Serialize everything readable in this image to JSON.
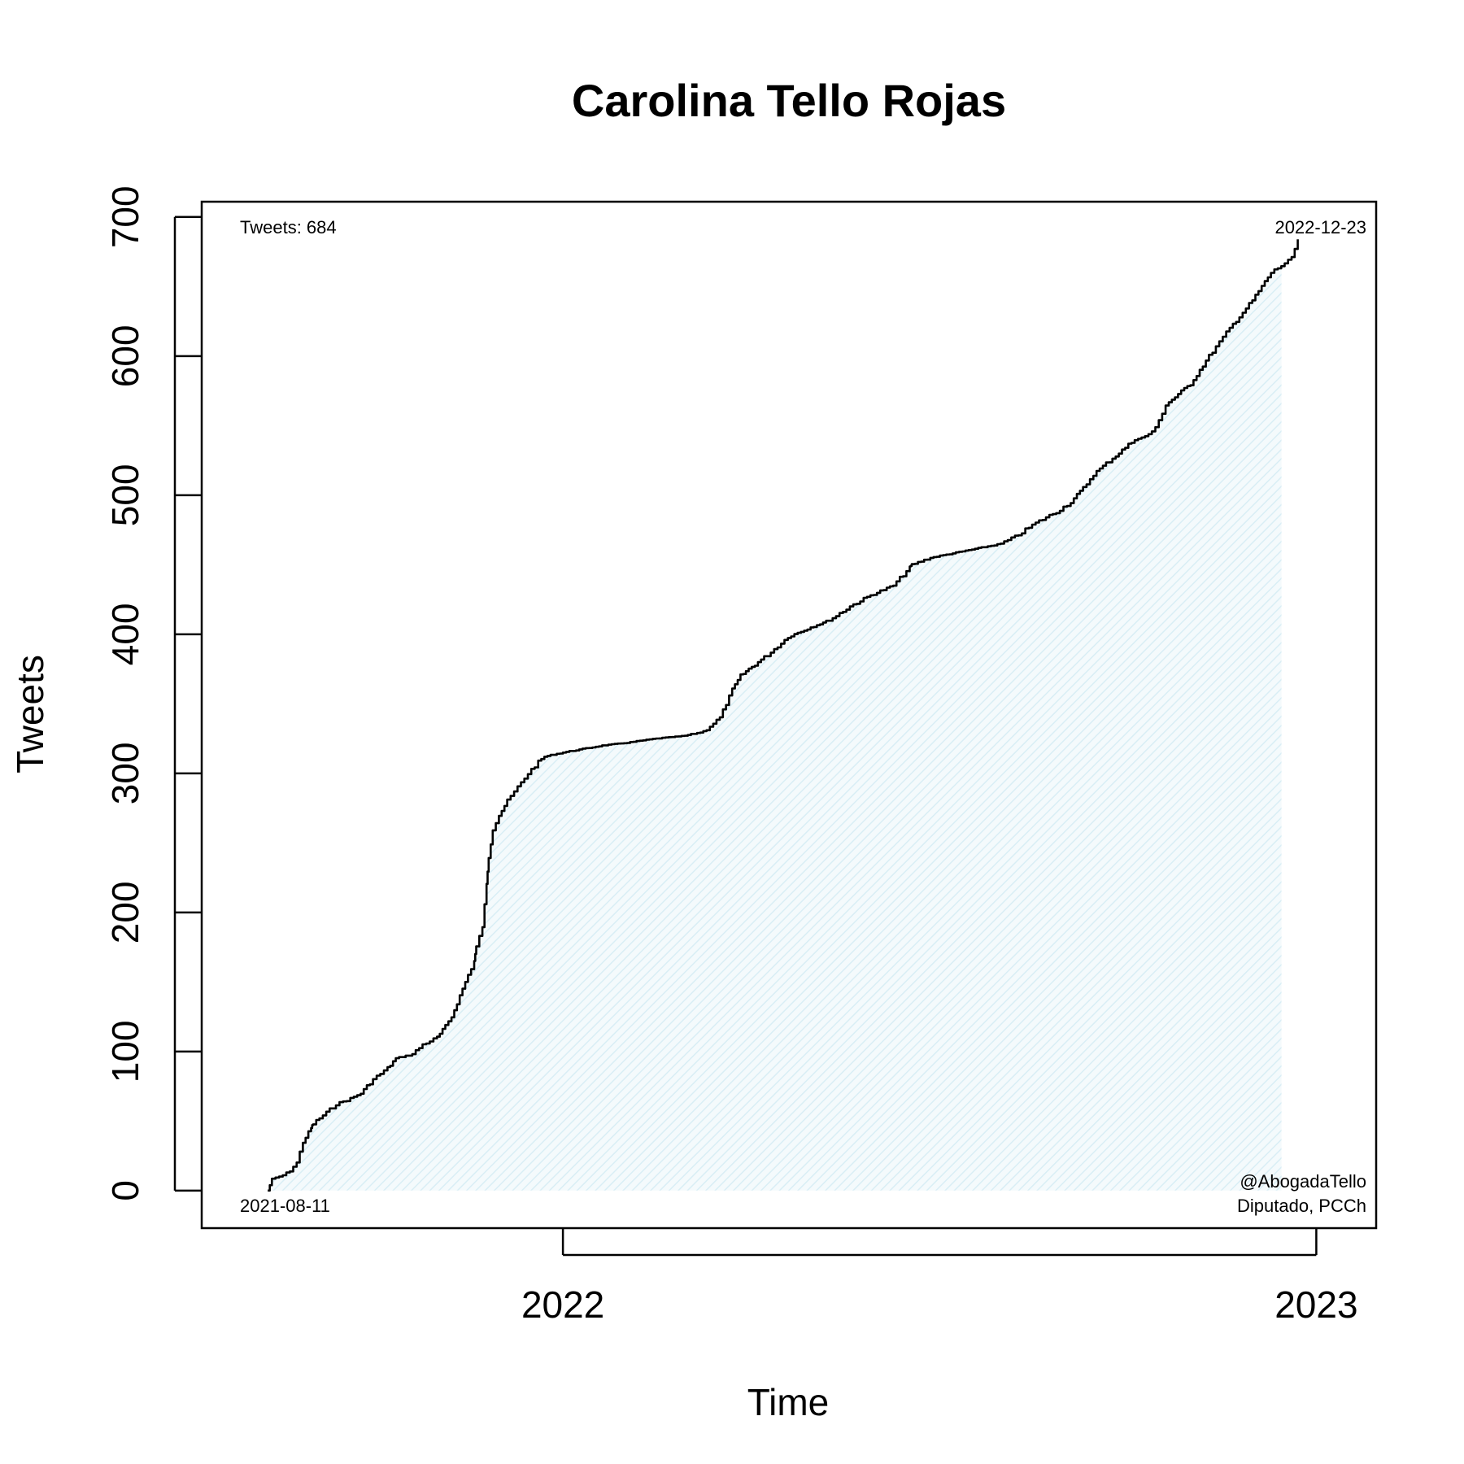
{
  "chart_data": {
    "type": "area",
    "title": "Carolina Tello Rojas",
    "xlabel": "Time",
    "ylabel": "Tweets",
    "x_scale": "date",
    "xlim": [
      "2021-07-10",
      "2023-01-30"
    ],
    "ylim": [
      -27,
      711
    ],
    "x_ticks": [
      {
        "date": "2022-01-01",
        "label": "2022"
      },
      {
        "date": "2023-01-01",
        "label": "2023"
      }
    ],
    "y_ticks": [
      0,
      100,
      200,
      300,
      400,
      500,
      600,
      700
    ],
    "grid": false,
    "fill_color": "#e8f4f8",
    "line_color": "#000000",
    "series": [
      {
        "x": [
          "2021-08-11",
          "2021-08-13",
          "2021-08-20",
          "2021-08-25",
          "2021-08-28",
          "2021-09-01",
          "2021-09-02",
          "2021-09-05",
          "2021-09-10",
          "2021-09-13",
          "2021-09-20",
          "2021-09-25",
          "2021-10-01",
          "2021-10-08",
          "2021-10-12",
          "2021-10-20",
          "2021-10-25",
          "2021-11-01",
          "2021-11-05",
          "2021-11-08",
          "2021-11-12",
          "2021-11-16",
          "2021-11-19",
          "2021-11-20",
          "2021-11-23",
          "2021-11-25",
          "2021-11-26",
          "2021-11-28",
          "2021-12-01",
          "2021-12-05",
          "2021-12-10",
          "2021-12-15",
          "2021-12-20",
          "2021-12-23",
          "2022-01-01",
          "2022-01-20",
          "2022-02-01",
          "2022-02-15",
          "2022-03-01",
          "2022-03-10",
          "2022-03-18",
          "2022-03-24",
          "2022-03-28",
          "2022-04-01",
          "2022-04-10",
          "2022-04-20",
          "2022-05-01",
          "2022-05-10",
          "2022-05-20",
          "2022-05-30",
          "2022-06-10",
          "2022-06-18",
          "2022-06-19",
          "2022-06-28",
          "2022-07-15",
          "2022-08-01",
          "2022-08-08",
          "2022-08-18",
          "2022-08-28",
          "2022-09-04",
          "2022-09-10",
          "2022-09-15",
          "2022-10-05",
          "2022-10-10",
          "2022-10-15",
          "2022-10-20",
          "2022-11-01",
          "2022-11-10",
          "2022-11-20",
          "2022-12-01",
          "2022-12-10",
          "2022-12-20",
          "2022-12-23"
        ],
        "values": [
          0,
          8,
          12,
          20,
          35,
          45,
          48,
          52,
          58,
          62,
          66,
          70,
          80,
          88,
          95,
          98,
          105,
          110,
          118,
          125,
          140,
          155,
          165,
          175,
          190,
          220,
          240,
          260,
          270,
          280,
          290,
          300,
          308,
          312,
          315,
          320,
          322,
          325,
          327,
          330,
          340,
          360,
          370,
          375,
          385,
          398,
          405,
          410,
          420,
          428,
          435,
          448,
          450,
          455,
          460,
          465,
          470,
          480,
          488,
          495,
          505,
          515,
          540,
          542,
          548,
          565,
          580,
          600,
          620,
          640,
          660,
          670,
          684
        ]
      }
    ],
    "annotations": {
      "top_left": "Tweets: 684",
      "top_right": "2022-12-23",
      "bottom_left": "2021-08-11",
      "bottom_right_line1": "@AbogadaTello",
      "bottom_right_line2": "Diputado, PCCh"
    }
  }
}
